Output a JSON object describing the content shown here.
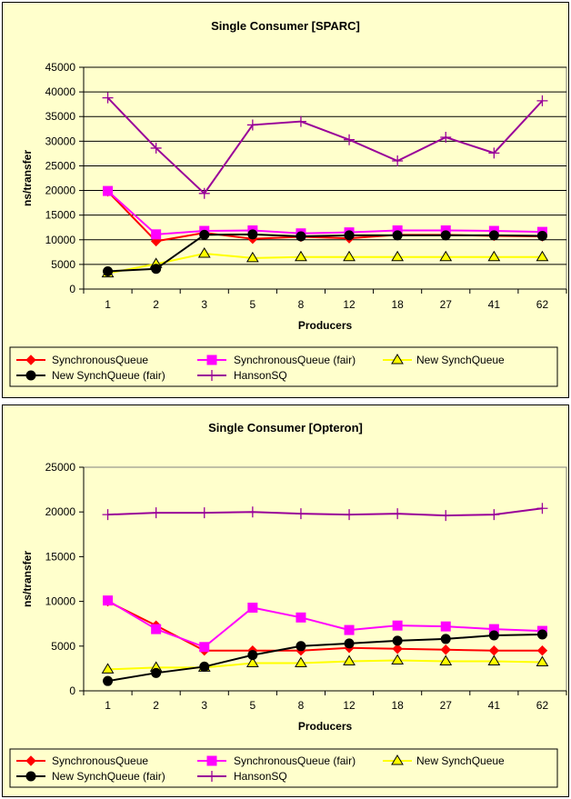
{
  "chart_data": [
    {
      "type": "line",
      "title": "Single Consumer [SPARC]",
      "xlabel": "Producers",
      "ylabel": "ns/transfer",
      "categories": [
        "1",
        "2",
        "3",
        "5",
        "8",
        "12",
        "18",
        "27",
        "41",
        "62"
      ],
      "ylim": [
        0,
        45000
      ],
      "yticks": [
        0,
        5000,
        10000,
        15000,
        20000,
        25000,
        30000,
        35000,
        40000,
        45000
      ],
      "grid": true,
      "legend_position": "bottom",
      "series": [
        {
          "name": "SynchronousQueue",
          "color": "#ff0000",
          "marker": "diamond",
          "values": [
            19800,
            9700,
            11400,
            10200,
            10600,
            10300,
            11000,
            11000,
            10800,
            10700
          ]
        },
        {
          "name": "SynchronousQueue (fair)",
          "color": "#ff00ff",
          "marker": "square",
          "values": [
            19900,
            11100,
            11800,
            11900,
            11300,
            11500,
            11900,
            11900,
            11800,
            11600
          ]
        },
        {
          "name": "New SynchQueue",
          "color": "#ffff00",
          "marker": "triangle",
          "values": [
            3200,
            5100,
            7200,
            6300,
            6500,
            6500,
            6500,
            6500,
            6500,
            6500
          ]
        },
        {
          "name": "New SynchQueue (fair)",
          "color": "#000000",
          "marker": "circle",
          "values": [
            3600,
            4100,
            11000,
            11100,
            10700,
            10900,
            10900,
            10900,
            10900,
            10800
          ]
        },
        {
          "name": "HansonSQ",
          "color": "#990099",
          "marker": "plus",
          "values": [
            38800,
            28600,
            19400,
            33300,
            34000,
            30300,
            26000,
            30800,
            27600,
            38200
          ]
        }
      ]
    },
    {
      "type": "line",
      "title": "Single Consumer [Opteron]",
      "xlabel": "Producers",
      "ylabel": "ns/transfer",
      "categories": [
        "1",
        "2",
        "3",
        "5",
        "8",
        "12",
        "18",
        "27",
        "41",
        "62"
      ],
      "ylim": [
        0,
        25000
      ],
      "yticks": [
        0,
        5000,
        10000,
        15000,
        20000,
        25000
      ],
      "grid": false,
      "legend_position": "bottom",
      "series": [
        {
          "name": "SynchronousQueue",
          "color": "#ff0000",
          "marker": "diamond",
          "values": [
            10000,
            7300,
            4500,
            4500,
            4500,
            4800,
            4700,
            4600,
            4500,
            4500
          ]
        },
        {
          "name": "SynchronousQueue (fair)",
          "color": "#ff00ff",
          "marker": "square",
          "values": [
            10100,
            6900,
            4900,
            9300,
            8200,
            6800,
            7300,
            7200,
            6900,
            6700
          ]
        },
        {
          "name": "New SynchQueue",
          "color": "#ffff00",
          "marker": "triangle",
          "values": [
            2400,
            2600,
            2600,
            3100,
            3100,
            3300,
            3400,
            3300,
            3300,
            3200
          ]
        },
        {
          "name": "New SynchQueue (fair)",
          "color": "#000000",
          "marker": "circle",
          "values": [
            1100,
            2000,
            2700,
            4000,
            5000,
            5300,
            5600,
            5800,
            6200,
            6300
          ]
        },
        {
          "name": "HansonSQ",
          "color": "#990099",
          "marker": "plus",
          "values": [
            19700,
            19900,
            19900,
            20000,
            19800,
            19700,
            19800,
            19600,
            19700,
            20400
          ]
        }
      ]
    }
  ]
}
